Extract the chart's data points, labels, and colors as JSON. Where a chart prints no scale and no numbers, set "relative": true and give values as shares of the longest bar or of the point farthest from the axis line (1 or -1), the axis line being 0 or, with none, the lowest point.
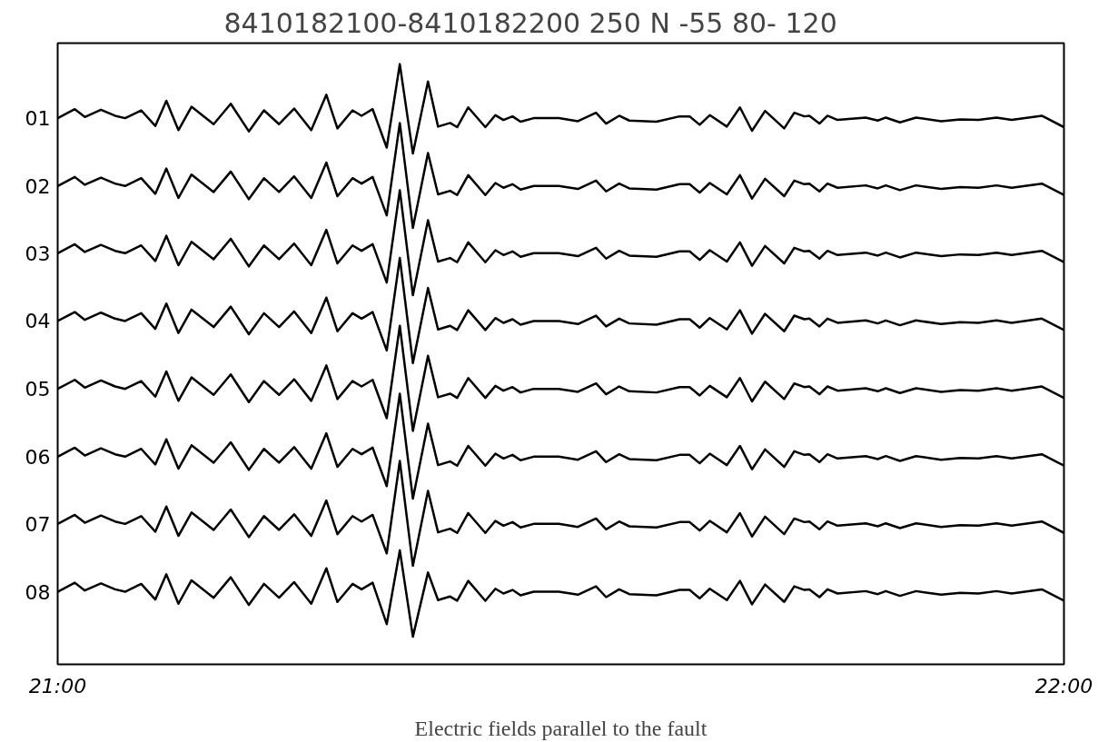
{
  "chart_data": {
    "type": "line",
    "title": "8410182100-8410182200   250 N   -55   80-  120",
    "xlabel": "Electric fields parallel to the fault",
    "relative": true,
    "grid": false,
    "tick_labels": "x",
    "marker": "none",
    "line_style": "solid",
    "xlim": [
      21,
      22
    ],
    "xticks": [
      {
        "value": 21,
        "label": "21:00"
      },
      {
        "value": 22,
        "label": "22:00"
      }
    ],
    "x": [
      21.0,
      21.017,
      21.027,
      21.043,
      21.057,
      21.067,
      21.083,
      21.097,
      21.108,
      21.12,
      21.133,
      21.155,
      21.172,
      21.19,
      21.205,
      21.22,
      21.235,
      21.252,
      21.267,
      21.278,
      21.293,
      21.302,
      21.313,
      21.327,
      21.34,
      21.353,
      21.368,
      21.378,
      21.39,
      21.397,
      21.408,
      21.425,
      21.435,
      21.443,
      21.452,
      21.46,
      21.473,
      21.498,
      21.517,
      21.535,
      21.545,
      21.558,
      21.568,
      21.595,
      21.618,
      21.628,
      21.638,
      21.648,
      21.665,
      21.678,
      21.69,
      21.703,
      21.722,
      21.732,
      21.742,
      21.747,
      21.757,
      21.765,
      21.775,
      21.803,
      21.815,
      21.823,
      21.837,
      21.853,
      21.878,
      21.897,
      21.915,
      21.933,
      21.948,
      21.978,
      22.0
    ],
    "series": [
      {
        "name": "01",
        "color": "#000000",
        "values": [
          0.91,
          0.925,
          0.912,
          0.924,
          0.914,
          0.91,
          0.923,
          0.897,
          0.939,
          0.89,
          0.929,
          0.9,
          0.934,
          0.888,
          0.923,
          0.9,
          0.926,
          0.89,
          0.949,
          0.893,
          0.923,
          0.914,
          0.925,
          0.861,
          1.0,
          0.851,
          0.971,
          0.896,
          0.902,
          0.895,
          0.928,
          0.895,
          0.915,
          0.907,
          0.913,
          0.904,
          0.91,
          0.91,
          0.905,
          0.919,
          0.901,
          0.914,
          0.906,
          0.904,
          0.913,
          0.913,
          0.899,
          0.915,
          0.896,
          0.928,
          0.889,
          0.922,
          0.893,
          0.919,
          0.913,
          0.914,
          0.901,
          0.914,
          0.907,
          0.911,
          0.906,
          0.911,
          0.903,
          0.911,
          0.905,
          0.908,
          0.907,
          0.911,
          0.907,
          0.914,
          0.895
        ]
      },
      {
        "name": "02",
        "color": "#000000",
        "values": [
          0.797,
          0.812,
          0.799,
          0.811,
          0.801,
          0.797,
          0.81,
          0.784,
          0.826,
          0.777,
          0.816,
          0.787,
          0.821,
          0.775,
          0.81,
          0.787,
          0.813,
          0.777,
          0.836,
          0.78,
          0.81,
          0.801,
          0.812,
          0.748,
          0.902,
          0.727,
          0.852,
          0.783,
          0.789,
          0.782,
          0.815,
          0.782,
          0.802,
          0.794,
          0.8,
          0.791,
          0.797,
          0.797,
          0.792,
          0.806,
          0.788,
          0.801,
          0.793,
          0.791,
          0.8,
          0.8,
          0.786,
          0.802,
          0.783,
          0.815,
          0.776,
          0.809,
          0.78,
          0.806,
          0.8,
          0.801,
          0.788,
          0.801,
          0.794,
          0.798,
          0.793,
          0.798,
          0.79,
          0.798,
          0.792,
          0.795,
          0.794,
          0.798,
          0.794,
          0.801,
          0.782
        ]
      },
      {
        "name": "03",
        "color": "#000000",
        "values": [
          0.685,
          0.7,
          0.687,
          0.699,
          0.689,
          0.685,
          0.698,
          0.672,
          0.714,
          0.665,
          0.704,
          0.675,
          0.709,
          0.663,
          0.698,
          0.675,
          0.701,
          0.665,
          0.724,
          0.668,
          0.698,
          0.689,
          0.7,
          0.636,
          0.79,
          0.615,
          0.74,
          0.671,
          0.677,
          0.67,
          0.703,
          0.67,
          0.69,
          0.682,
          0.688,
          0.679,
          0.685,
          0.685,
          0.68,
          0.694,
          0.676,
          0.689,
          0.681,
          0.679,
          0.688,
          0.688,
          0.674,
          0.69,
          0.671,
          0.703,
          0.664,
          0.697,
          0.668,
          0.694,
          0.688,
          0.689,
          0.676,
          0.689,
          0.682,
          0.686,
          0.681,
          0.686,
          0.678,
          0.686,
          0.68,
          0.683,
          0.682,
          0.686,
          0.682,
          0.689,
          0.67
        ]
      },
      {
        "name": "04",
        "color": "#000000",
        "values": [
          0.572,
          0.587,
          0.574,
          0.586,
          0.576,
          0.572,
          0.585,
          0.559,
          0.601,
          0.552,
          0.591,
          0.562,
          0.596,
          0.55,
          0.585,
          0.562,
          0.588,
          0.552,
          0.611,
          0.555,
          0.585,
          0.576,
          0.587,
          0.523,
          0.677,
          0.502,
          0.627,
          0.558,
          0.564,
          0.557,
          0.59,
          0.557,
          0.577,
          0.569,
          0.575,
          0.566,
          0.572,
          0.572,
          0.567,
          0.581,
          0.563,
          0.576,
          0.568,
          0.566,
          0.575,
          0.575,
          0.561,
          0.577,
          0.558,
          0.59,
          0.551,
          0.584,
          0.555,
          0.581,
          0.575,
          0.576,
          0.563,
          0.576,
          0.569,
          0.573,
          0.568,
          0.573,
          0.565,
          0.573,
          0.567,
          0.57,
          0.569,
          0.573,
          0.569,
          0.576,
          0.557
        ]
      },
      {
        "name": "05",
        "color": "#000000",
        "values": [
          0.459,
          0.474,
          0.461,
          0.473,
          0.463,
          0.459,
          0.472,
          0.446,
          0.488,
          0.439,
          0.478,
          0.449,
          0.483,
          0.437,
          0.472,
          0.449,
          0.475,
          0.439,
          0.498,
          0.442,
          0.472,
          0.463,
          0.474,
          0.41,
          0.564,
          0.389,
          0.514,
          0.445,
          0.451,
          0.444,
          0.477,
          0.444,
          0.464,
          0.456,
          0.462,
          0.453,
          0.459,
          0.459,
          0.454,
          0.468,
          0.45,
          0.463,
          0.455,
          0.453,
          0.462,
          0.462,
          0.448,
          0.464,
          0.445,
          0.477,
          0.438,
          0.471,
          0.442,
          0.468,
          0.462,
          0.463,
          0.45,
          0.463,
          0.456,
          0.46,
          0.455,
          0.46,
          0.452,
          0.46,
          0.454,
          0.457,
          0.456,
          0.46,
          0.456,
          0.463,
          0.444
        ]
      },
      {
        "name": "06",
        "color": "#000000",
        "values": [
          0.346,
          0.361,
          0.348,
          0.36,
          0.35,
          0.346,
          0.359,
          0.333,
          0.375,
          0.326,
          0.365,
          0.336,
          0.37,
          0.324,
          0.359,
          0.336,
          0.362,
          0.326,
          0.385,
          0.329,
          0.359,
          0.35,
          0.361,
          0.297,
          0.451,
          0.276,
          0.401,
          0.332,
          0.338,
          0.331,
          0.364,
          0.331,
          0.351,
          0.343,
          0.349,
          0.34,
          0.346,
          0.346,
          0.341,
          0.355,
          0.337,
          0.35,
          0.342,
          0.34,
          0.349,
          0.349,
          0.335,
          0.351,
          0.332,
          0.364,
          0.325,
          0.358,
          0.329,
          0.355,
          0.349,
          0.35,
          0.337,
          0.35,
          0.343,
          0.347,
          0.342,
          0.347,
          0.339,
          0.347,
          0.341,
          0.344,
          0.343,
          0.347,
          0.343,
          0.35,
          0.331
        ]
      },
      {
        "name": "07",
        "color": "#000000",
        "values": [
          0.234,
          0.249,
          0.236,
          0.248,
          0.238,
          0.234,
          0.247,
          0.221,
          0.263,
          0.214,
          0.253,
          0.224,
          0.258,
          0.212,
          0.247,
          0.224,
          0.25,
          0.214,
          0.273,
          0.217,
          0.247,
          0.238,
          0.249,
          0.185,
          0.339,
          0.164,
          0.289,
          0.22,
          0.226,
          0.219,
          0.252,
          0.219,
          0.239,
          0.231,
          0.237,
          0.228,
          0.234,
          0.234,
          0.229,
          0.243,
          0.225,
          0.238,
          0.23,
          0.228,
          0.237,
          0.237,
          0.223,
          0.239,
          0.22,
          0.252,
          0.213,
          0.246,
          0.217,
          0.243,
          0.237,
          0.238,
          0.225,
          0.238,
          0.231,
          0.235,
          0.23,
          0.235,
          0.227,
          0.235,
          0.229,
          0.232,
          0.231,
          0.235,
          0.231,
          0.238,
          0.219
        ]
      },
      {
        "name": "08",
        "color": "#000000",
        "values": [
          0.121,
          0.136,
          0.123,
          0.135,
          0.125,
          0.121,
          0.134,
          0.108,
          0.15,
          0.101,
          0.14,
          0.111,
          0.145,
          0.099,
          0.134,
          0.111,
          0.137,
          0.101,
          0.16,
          0.104,
          0.134,
          0.125,
          0.136,
          0.067,
          0.19,
          0.046,
          0.153,
          0.107,
          0.113,
          0.106,
          0.139,
          0.106,
          0.126,
          0.118,
          0.124,
          0.115,
          0.121,
          0.121,
          0.116,
          0.13,
          0.112,
          0.125,
          0.117,
          0.115,
          0.124,
          0.124,
          0.11,
          0.126,
          0.107,
          0.139,
          0.1,
          0.133,
          0.104,
          0.13,
          0.124,
          0.125,
          0.112,
          0.125,
          0.118,
          0.122,
          0.117,
          0.122,
          0.114,
          0.122,
          0.116,
          0.119,
          0.118,
          0.122,
          0.118,
          0.125,
          0.106
        ]
      }
    ]
  }
}
